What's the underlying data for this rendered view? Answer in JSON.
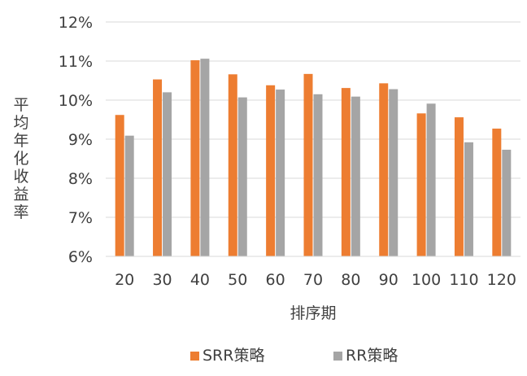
{
  "chart_data": {
    "type": "bar",
    "categories": [
      "20",
      "30",
      "40",
      "50",
      "60",
      "70",
      "80",
      "90",
      "100",
      "110",
      "120"
    ],
    "series": [
      {
        "name": "SRR策略",
        "color": "#ED7D31",
        "values": [
          9.62,
          10.53,
          11.02,
          10.66,
          10.38,
          10.67,
          10.31,
          10.43,
          9.66,
          9.56,
          9.27
        ]
      },
      {
        "name": "RR策略",
        "color": "#A5A5A5",
        "values": [
          9.09,
          10.2,
          11.06,
          10.07,
          10.27,
          10.15,
          10.09,
          10.28,
          9.91,
          8.92,
          8.73
        ]
      }
    ],
    "yticks": [
      "6%",
      "7%",
      "8%",
      "9%",
      "10%",
      "11%",
      "12%"
    ],
    "ylim": [
      6,
      12
    ],
    "xlabel": "排序期",
    "ylabel": "平均年化收益率",
    "grid": true,
    "legend_position": "bottom"
  }
}
